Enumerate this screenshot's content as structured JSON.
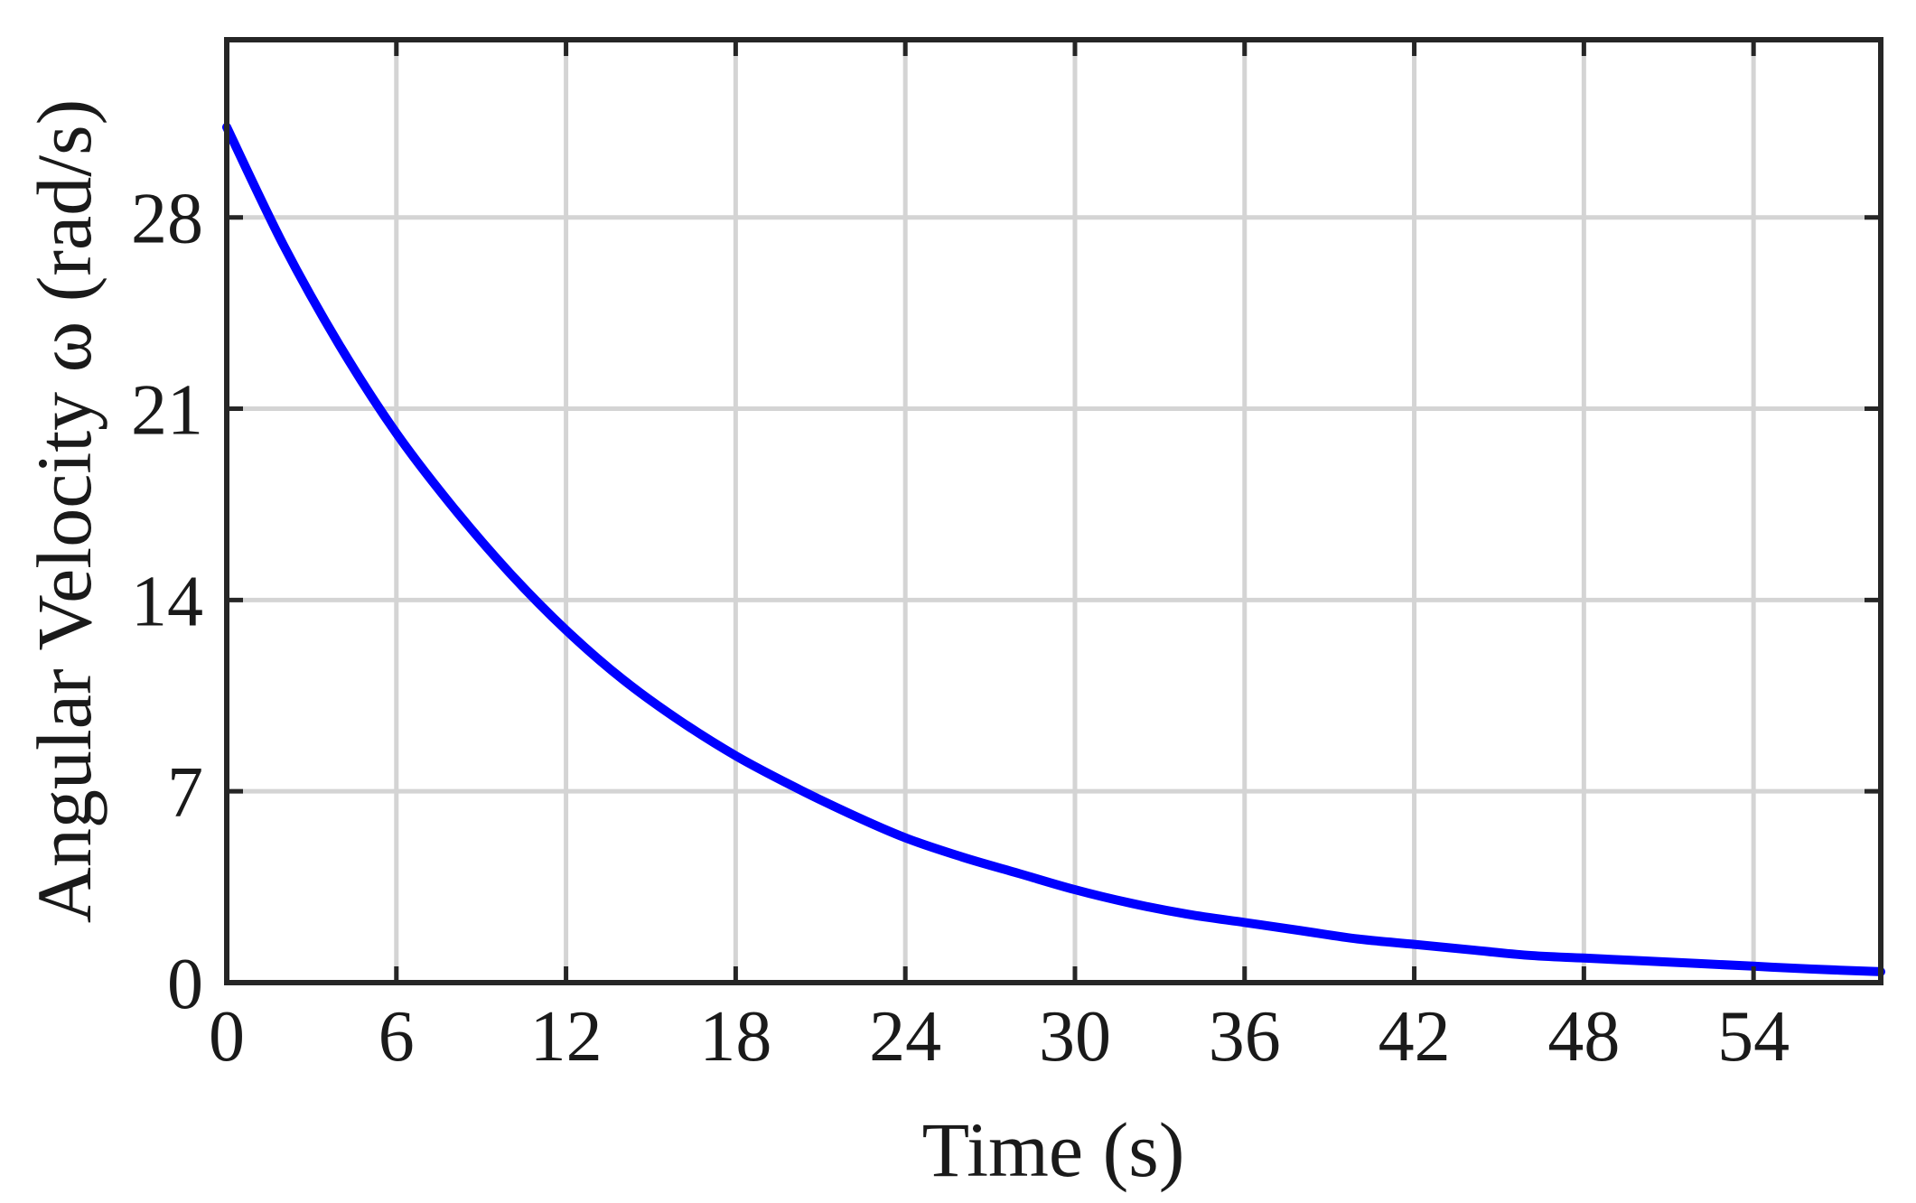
{
  "chart_data": {
    "type": "line",
    "title": "",
    "xlabel": "Time (s)",
    "ylabel": "Angular Velocity ω (rad/s)",
    "xlim": [
      0,
      58.5
    ],
    "ylim": [
      0,
      34.5
    ],
    "xticks": [
      0,
      6,
      12,
      18,
      24,
      30,
      36,
      42,
      48,
      54
    ],
    "xtick_labels": [
      "0",
      "6",
      "12",
      "18",
      "24",
      "30",
      "36",
      "42",
      "48",
      "54"
    ],
    "yticks": [
      0,
      7,
      14,
      21,
      28
    ],
    "ytick_labels": [
      "0",
      "7",
      "14",
      "21",
      "28"
    ],
    "grid": true,
    "legend": "none",
    "series": [
      {
        "color": "#0000ff",
        "x": [
          0,
          2,
          4,
          6,
          8,
          10,
          12,
          14,
          16,
          18,
          20,
          22,
          24,
          26,
          28,
          30,
          32,
          34,
          36,
          38,
          40,
          42,
          44,
          46,
          48,
          50,
          52,
          54,
          56,
          58.5
        ],
        "y": [
          31.3,
          27.0,
          23.3,
          20.1,
          17.4,
          15.0,
          12.9,
          11.1,
          9.6,
          8.3,
          7.2,
          6.2,
          5.3,
          4.6,
          4.0,
          3.4,
          2.9,
          2.5,
          2.2,
          1.9,
          1.6,
          1.4,
          1.2,
          1.0,
          0.9,
          0.8,
          0.7,
          0.6,
          0.5,
          0.4
        ]
      }
    ]
  }
}
